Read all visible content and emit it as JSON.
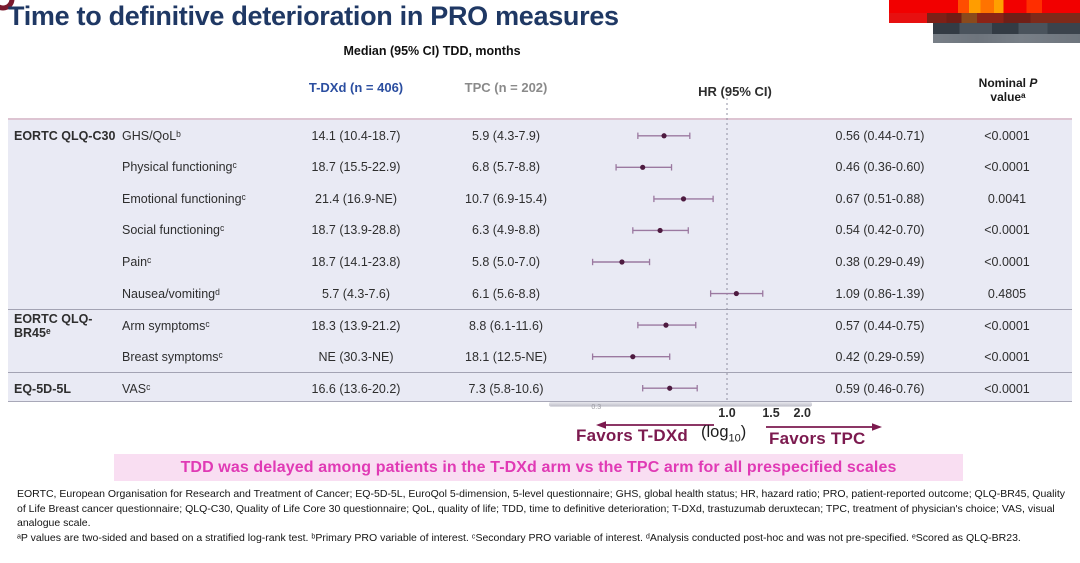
{
  "slide": {
    "title": "Time to definitive deterioration in PRO measures",
    "subtitle": "Median (95% CI) TDD, months",
    "highlight": "TDD was delayed among patients in the T-DXd arm vs the TPC arm for all prespecified scales"
  },
  "columns": {
    "tdxd": "T-DXd (n = 406)",
    "tpc": "TPC (n = 202)",
    "hr": "HR (95% CI)",
    "nominal_line1_pre": "Nominal ",
    "nominal_line1_italic": "P",
    "nominal_line2": "valueᵃ"
  },
  "axis": {
    "log_pre": "(log",
    "log_sub": "10",
    "log_post": ")",
    "favors_left": "Favors T-DXd",
    "favors_right": "Favors TPC"
  },
  "colors": {
    "title": "#1f3864",
    "tdxd_blue": "#2b4ea0",
    "tpc_gray": "#8a8a8a",
    "table_bg": "#e9eaf4",
    "ci_line": "#9b79a0",
    "marker_dot": "#4e1b40",
    "favors_maroon": "#7c1a4f",
    "highlight_text": "#e03ab5",
    "highlight_bg": "#f9def2"
  },
  "chart_data": {
    "type": "forest",
    "x_scale": "log10",
    "x_ticks": [
      0.3,
      1.0,
      1.5,
      2.0
    ],
    "reference_line": 1.0,
    "x_axis_note": "(log10)",
    "favors": {
      "left": "Favors T-DXd",
      "right": "Favors TPC"
    },
    "rows": [
      {
        "group": "EORTC QLQ-C30",
        "scale": "GHS/QoLᵇ",
        "tdxd": "14.1 (10.4-18.7)",
        "tpc": "5.9 (4.3-7.9)",
        "hr": 0.56,
        "lo": 0.44,
        "hi": 0.71,
        "hr_ci": "0.56 (0.44-0.71)",
        "p": "<0.0001"
      },
      {
        "group": "EORTC QLQ-C30",
        "scale": "Physical functioningᶜ",
        "tdxd": "18.7 (15.5-22.9)",
        "tpc": "6.8 (5.7-8.8)",
        "hr": 0.46,
        "lo": 0.36,
        "hi": 0.6,
        "hr_ci": "0.46 (0.36-0.60)",
        "p": "<0.0001"
      },
      {
        "group": "EORTC QLQ-C30",
        "scale": "Emotional functioningᶜ",
        "tdxd": "21.4 (16.9-NE)",
        "tpc": "10.7 (6.9-15.4)",
        "hr": 0.67,
        "lo": 0.51,
        "hi": 0.88,
        "hr_ci": "0.67 (0.51-0.88)",
        "p": "0.0041"
      },
      {
        "group": "EORTC QLQ-C30",
        "scale": "Social functioningᶜ",
        "tdxd": "18.7 (13.9-28.8)",
        "tpc": "6.3 (4.9-8.8)",
        "hr": 0.54,
        "lo": 0.42,
        "hi": 0.7,
        "hr_ci": "0.54 (0.42-0.70)",
        "p": "<0.0001"
      },
      {
        "group": "EORTC QLQ-C30",
        "scale": "Painᶜ",
        "tdxd": "18.7 (14.1-23.8)",
        "tpc": "5.8 (5.0-7.0)",
        "hr": 0.38,
        "lo": 0.29,
        "hi": 0.49,
        "hr_ci": "0.38 (0.29-0.49)",
        "p": "<0.0001"
      },
      {
        "group": "EORTC QLQ-C30",
        "scale": "Nausea/vomitingᵈ",
        "tdxd": "5.7 (4.3-7.6)",
        "tpc": "6.1 (5.6-8.8)",
        "hr": 1.09,
        "lo": 0.86,
        "hi": 1.39,
        "hr_ci": "1.09 (0.86-1.39)",
        "p": "0.4805"
      },
      {
        "group": "EORTC QLQ-BR45ᵉ",
        "scale": "Arm symptomsᶜ",
        "tdxd": "18.3 (13.9-21.2)",
        "tpc": "8.8 (6.1-11.6)",
        "hr": 0.57,
        "lo": 0.44,
        "hi": 0.75,
        "hr_ci": "0.57 (0.44-0.75)",
        "p": "<0.0001"
      },
      {
        "group": "EORTC QLQ-BR45ᵉ",
        "scale": "Breast symptomsᶜ",
        "tdxd": "NE (30.3-NE)",
        "tpc": "18.1 (12.5-NE)",
        "hr": 0.42,
        "lo": 0.29,
        "hi": 0.59,
        "hr_ci": "0.42 (0.29-0.59)",
        "p": "<0.0001"
      },
      {
        "group": "EQ-5D-5L",
        "scale": "VASᶜ",
        "tdxd": "16.6 (13.6-20.2)",
        "tpc": "7.3 (5.8-10.6)",
        "hr": 0.59,
        "lo": 0.46,
        "hi": 0.76,
        "hr_ci": "0.59 (0.46-0.76)",
        "p": "<0.0001"
      }
    ]
  },
  "footnotes": {
    "abbreviations": "EORTC, European Organisation for Research and Treatment of Cancer; EQ-5D-5L, EuroQol 5-dimension, 5-level questionnaire; GHS, global health status; HR, hazard ratio; PRO, patient-reported outcome; QLQ-BR45, Quality of Life Breast cancer questionnaire; QLQ-C30, Quality of Life Core 30 questionnaire; QoL, quality of life; TDD, time to definitive deterioration; T-DXd, trastuzumab deruxtecan; TPC, treatment of physician's choice; VAS, visual analogue scale.",
    "notes": "ᵃP values are two-sided and based on a stratified log-rank test. ᵇPrimary PRO variable of interest. ᶜSecondary PRO variable of interest. ᵈAnalysis conducted post-hoc and was not pre-specified. ᵉScored as QLQ-BR23."
  }
}
